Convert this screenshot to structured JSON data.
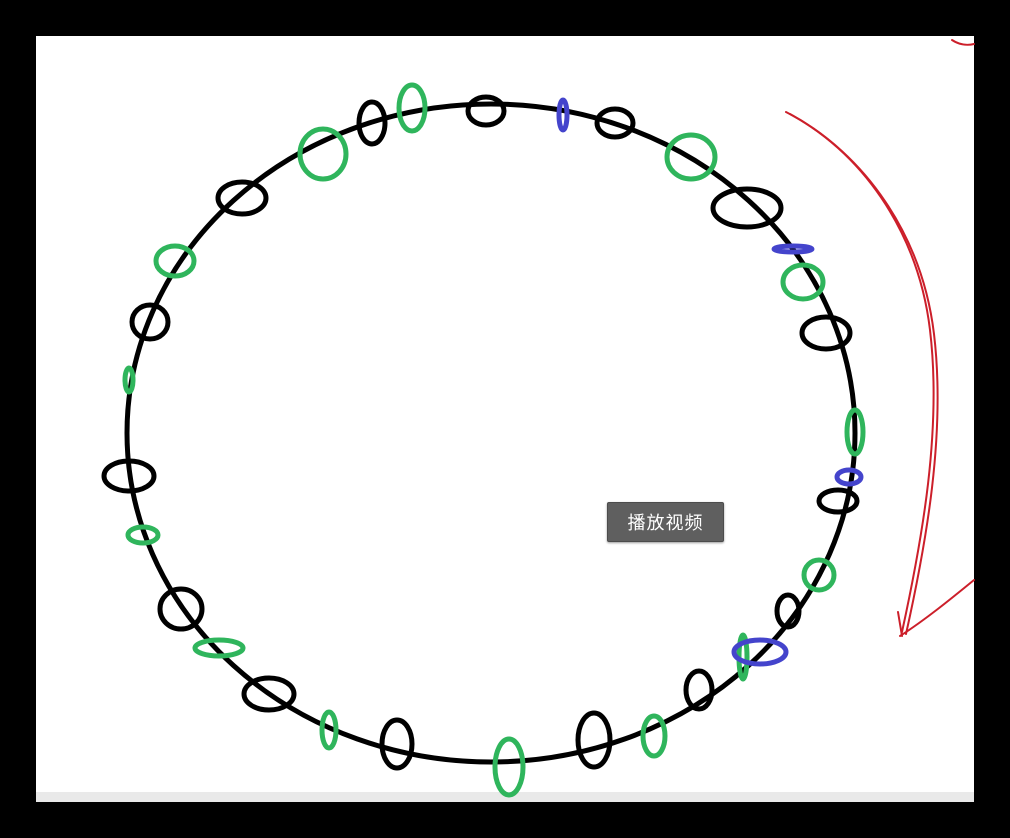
{
  "tooltip": {
    "label": "播放视频"
  },
  "colors": {
    "background": "#000000",
    "whiteboard": "#ffffff",
    "ring_stroke": "#000000",
    "marker_black": "#000000",
    "marker_green": "#2fb55c",
    "marker_blue": "#4444cc",
    "arrow_red": "#cc1f2a"
  },
  "icons": {
    "arrow": "red-curved-arrow-icon"
  }
}
